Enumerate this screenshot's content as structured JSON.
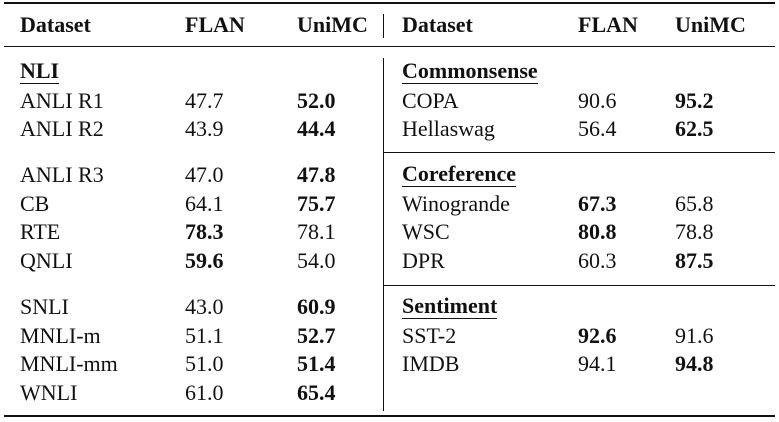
{
  "header": [
    "Dataset",
    "FLAN",
    "UniMC",
    "Dataset",
    "FLAN",
    "UniMC"
  ],
  "left": {
    "groups": [
      {
        "title": "NLI",
        "rows": [
          [
            "ANLI R1",
            "47.7",
            "52.0"
          ],
          [
            "ANLI R2",
            "43.9",
            "44.4"
          ]
        ]
      },
      {
        "rows": [
          [
            "ANLI R3",
            "47.0",
            "47.8"
          ],
          [
            "CB",
            "64.1",
            "75.7"
          ],
          [
            "RTE",
            "78.3",
            "78.1"
          ],
          [
            "QNLI",
            "59.6",
            "54.0"
          ]
        ]
      },
      {
        "rows": [
          [
            "SNLI",
            "43.0",
            "60.9"
          ],
          [
            "MNLI-m",
            "51.1",
            "52.7"
          ],
          [
            "MNLI-mm",
            "51.0",
            "51.4"
          ],
          [
            "WNLI",
            "61.0",
            "65.4"
          ]
        ]
      }
    ]
  },
  "right": {
    "groups": [
      {
        "title": "Commonsense",
        "rows": [
          [
            "COPA",
            "90.6",
            "95.2"
          ],
          [
            "Hellaswag",
            "56.4",
            "62.5"
          ]
        ]
      },
      {
        "title": "Coreference",
        "rows": [
          [
            "Winogrande",
            "67.3",
            "65.8"
          ],
          [
            "WSC",
            "80.8",
            "78.8"
          ],
          [
            "DPR",
            "60.3",
            "87.5"
          ]
        ]
      },
      {
        "title": "Sentiment",
        "rows": [
          [
            "SST-2",
            "92.6",
            "91.6"
          ],
          [
            "IMDB",
            "94.1",
            "94.8"
          ]
        ]
      }
    ]
  }
}
